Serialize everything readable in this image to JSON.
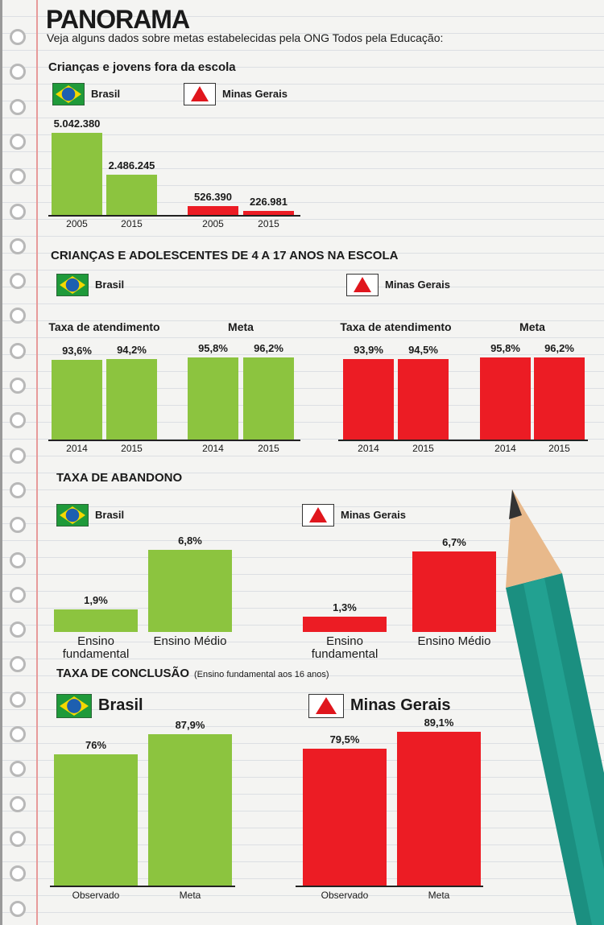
{
  "header": {
    "title": "PANORAMA",
    "subtitle": "Veja alguns dados sobre metas estabelecidas pela ONG Todos pela Educação:"
  },
  "chart_data": [
    {
      "type": "bar",
      "title": "Crianças e jovens fora da escola",
      "categories": [
        "2005",
        "2015"
      ],
      "series": [
        {
          "name": "Brasil",
          "color": "#8cc43f",
          "values": [
            5042380,
            2486245
          ],
          "value_labels": [
            "5.042.380",
            "2.486.245"
          ]
        },
        {
          "name": "Minas Gerais",
          "color": "#ec1c24",
          "values": [
            526390,
            226981
          ],
          "value_labels": [
            "526.390",
            "226.981"
          ]
        }
      ]
    },
    {
      "type": "bar",
      "title": "CRIANÇAS E ADOLESCENTES DE 4 A 17 ANOS NA ESCOLA",
      "groups": [
        "Taxa de atendimento",
        "Meta"
      ],
      "categories": [
        "2014",
        "2015"
      ],
      "series": [
        {
          "name": "Brasil",
          "color": "#8cc43f",
          "values": [
            [
              93.6,
              94.2
            ],
            [
              95.8,
              96.2
            ]
          ],
          "value_labels": [
            [
              "93,6%",
              "94,2%"
            ],
            [
              "95,8%",
              "96,2%"
            ]
          ]
        },
        {
          "name": "Minas Gerais",
          "color": "#ec1c24",
          "values": [
            [
              93.9,
              94.5
            ],
            [
              95.8,
              96.2
            ]
          ],
          "value_labels": [
            [
              "93,9%",
              "94,5%"
            ],
            [
              "95,8%",
              "96,2%"
            ]
          ]
        }
      ]
    },
    {
      "type": "bar",
      "title": "TAXA DE ABANDONO",
      "categories": [
        "Ensino fundamental",
        "Ensino Médio"
      ],
      "series": [
        {
          "name": "Brasil",
          "color": "#8cc43f",
          "values": [
            1.9,
            6.8
          ],
          "value_labels": [
            "1,9%",
            "6,8%"
          ]
        },
        {
          "name": "Minas Gerais",
          "color": "#ec1c24",
          "values": [
            1.3,
            6.7
          ],
          "value_labels": [
            "1,3%",
            "6,7%"
          ]
        }
      ]
    },
    {
      "type": "bar",
      "title": "TAXA DE CONCLUSÃO",
      "subtitle": "(Ensino fundamental aos 16 anos)",
      "categories": [
        "Observado",
        "Meta"
      ],
      "series": [
        {
          "name": "Brasil",
          "color": "#8cc43f",
          "values": [
            76,
            87.9
          ],
          "value_labels": [
            "76%",
            "87,9%"
          ]
        },
        {
          "name": "Minas Gerais",
          "color": "#ec1c24",
          "values": [
            79.5,
            89.1
          ],
          "value_labels": [
            "79,5%",
            "89,1%"
          ]
        }
      ]
    }
  ]
}
